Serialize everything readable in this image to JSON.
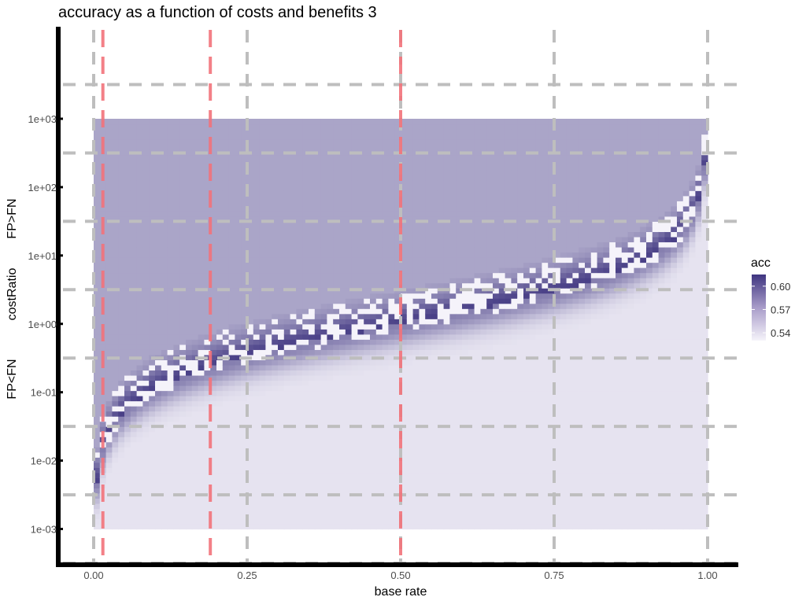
{
  "chart_data": {
    "type": "heatmap",
    "title": "accuracy as a function of costs and benefits 3",
    "xlabel": "base rate",
    "ylabel": "costRatio",
    "ylabel_upper": "FP>FN",
    "ylabel_lower": "FP<FN",
    "xlim": [
      0,
      1
    ],
    "ylim_log10": [
      -3.5,
      4.3
    ],
    "log_scale_y": true,
    "x_ticks": [
      {
        "value": 0,
        "label": "0.00"
      },
      {
        "value": 0.25,
        "label": "0.25"
      },
      {
        "value": 0.5,
        "label": "0.50"
      },
      {
        "value": 0.75,
        "label": "0.75"
      },
      {
        "value": 1,
        "label": "1.00"
      }
    ],
    "y_ticks": [
      {
        "value": 0.001,
        "label": "1e-03"
      },
      {
        "value": 0.01,
        "label": "1e-02"
      },
      {
        "value": 0.1,
        "label": "1e-01"
      },
      {
        "value": 1,
        "label": "1e+00"
      },
      {
        "value": 10,
        "label": "1e+01"
      },
      {
        "value": 100,
        "label": "1e+02"
      },
      {
        "value": 1000,
        "label": "1e+03"
      }
    ],
    "grid_x": [
      0,
      0.25,
      0.5,
      0.75,
      1
    ],
    "grid_y_log10": [
      -3.5,
      -2.5,
      -1.5,
      -0.5,
      0.5,
      1.5,
      2.5,
      3.5
    ],
    "vlines_x": [
      0.015,
      0.19,
      0.5
    ],
    "x_range": [
      0,
      1
    ],
    "y_range_log10": [
      -3,
      3
    ],
    "upper_region_value": 0.565,
    "lower_region_value": 0.537,
    "boundary_value_peak": 0.61,
    "legend": {
      "title": "acc",
      "labels": [
        {
          "value": 0.6,
          "label": "0.60"
        },
        {
          "value": 0.57,
          "label": "0.57"
        },
        {
          "value": 0.54,
          "label": "0.54"
        }
      ],
      "range": [
        0.53,
        0.615
      ]
    },
    "colors": {
      "low": "#f5f3fa",
      "high": "#3f3580",
      "grid": "#bebebe",
      "vline": "#f2727a",
      "axis": "#000000"
    },
    "grid": true,
    "legend_position": "right"
  }
}
